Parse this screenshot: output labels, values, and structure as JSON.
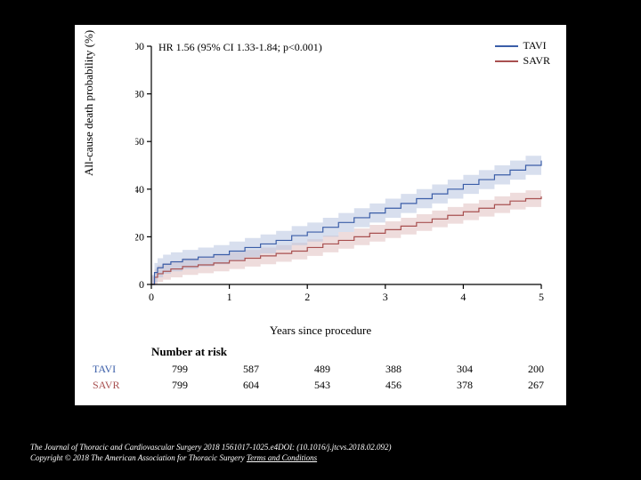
{
  "slide": {
    "background_color": "#000000",
    "panel_background": "#ffffff"
  },
  "chart": {
    "type": "survival_curve",
    "hr_annotation": "HR 1.56 (95% CI 1.33-1.84; p<0.001)",
    "y_label": "All-cause death probability (%)",
    "x_label": "Years since procedure",
    "xlim": [
      0,
      5
    ],
    "ylim": [
      0,
      100
    ],
    "x_ticks": [
      0,
      1,
      2,
      3,
      4,
      5
    ],
    "y_ticks": [
      0,
      20,
      40,
      60,
      80,
      100
    ],
    "series": {
      "tavi": {
        "label": "TAVI",
        "line_color": "#3b5ea8",
        "band_color": "#b8c4e0",
        "points": [
          [
            0,
            0
          ],
          [
            0.04,
            5
          ],
          [
            0.08,
            7
          ],
          [
            0.15,
            8.5
          ],
          [
            0.25,
            9.5
          ],
          [
            0.4,
            10.5
          ],
          [
            0.6,
            11.5
          ],
          [
            0.8,
            12.5
          ],
          [
            1,
            14
          ],
          [
            1.2,
            15.5
          ],
          [
            1.4,
            17
          ],
          [
            1.6,
            18.5
          ],
          [
            1.8,
            20.5
          ],
          [
            2,
            22
          ],
          [
            2.2,
            24
          ],
          [
            2.4,
            26
          ],
          [
            2.6,
            28
          ],
          [
            2.8,
            30
          ],
          [
            3,
            32
          ],
          [
            3.2,
            34
          ],
          [
            3.4,
            36
          ],
          [
            3.6,
            38
          ],
          [
            3.8,
            40
          ],
          [
            4,
            42
          ],
          [
            4.2,
            44
          ],
          [
            4.4,
            46
          ],
          [
            4.6,
            48
          ],
          [
            4.8,
            50
          ],
          [
            5,
            52
          ]
        ],
        "ci_half_width": 4
      },
      "savr": {
        "label": "SAVR",
        "line_color": "#a85050",
        "band_color": "#e0c0c0",
        "points": [
          [
            0,
            0
          ],
          [
            0.04,
            3
          ],
          [
            0.08,
            4.5
          ],
          [
            0.15,
            5.5
          ],
          [
            0.25,
            6.5
          ],
          [
            0.4,
            7.5
          ],
          [
            0.6,
            8.2
          ],
          [
            0.8,
            9
          ],
          [
            1,
            10
          ],
          [
            1.2,
            11
          ],
          [
            1.4,
            12
          ],
          [
            1.6,
            13
          ],
          [
            1.8,
            14
          ],
          [
            2,
            15.5
          ],
          [
            2.2,
            17
          ],
          [
            2.4,
            18.5
          ],
          [
            2.6,
            20
          ],
          [
            2.8,
            21.5
          ],
          [
            3,
            23
          ],
          [
            3.2,
            24.5
          ],
          [
            3.4,
            26
          ],
          [
            3.6,
            27.5
          ],
          [
            3.8,
            29
          ],
          [
            4,
            30.5
          ],
          [
            4.2,
            32
          ],
          [
            4.4,
            33.5
          ],
          [
            4.6,
            35
          ],
          [
            4.8,
            36
          ],
          [
            5,
            37
          ]
        ],
        "ci_half_width": 3.5
      }
    },
    "line_width": 1.2,
    "band_opacity": 0.55,
    "tick_fontsize": 12,
    "label_fontsize": 13
  },
  "risk_table": {
    "title": "Number at risk",
    "columns": [
      0,
      1,
      2,
      3,
      4,
      5
    ],
    "rows": [
      {
        "label": "TAVI",
        "color": "#3b5ea8",
        "values": [
          799,
          587,
          489,
          388,
          304,
          200
        ]
      },
      {
        "label": "SAVR",
        "color": "#a85050",
        "values": [
          799,
          604,
          543,
          456,
          378,
          267
        ]
      }
    ]
  },
  "citation": {
    "line1": "The Journal of Thoracic and Cardiovascular Surgery 2018 1561017-1025.e4DOI: (10.1016/j.jtcvs.2018.02.092)",
    "line2_prefix": "Copyright © 2018 The American Association for Thoracic Surgery",
    "terms_label": "Terms and Conditions"
  },
  "legend": {
    "items": [
      {
        "label": "TAVI",
        "color": "#3b5ea8"
      },
      {
        "label": "SAVR",
        "color": "#a85050"
      }
    ]
  }
}
